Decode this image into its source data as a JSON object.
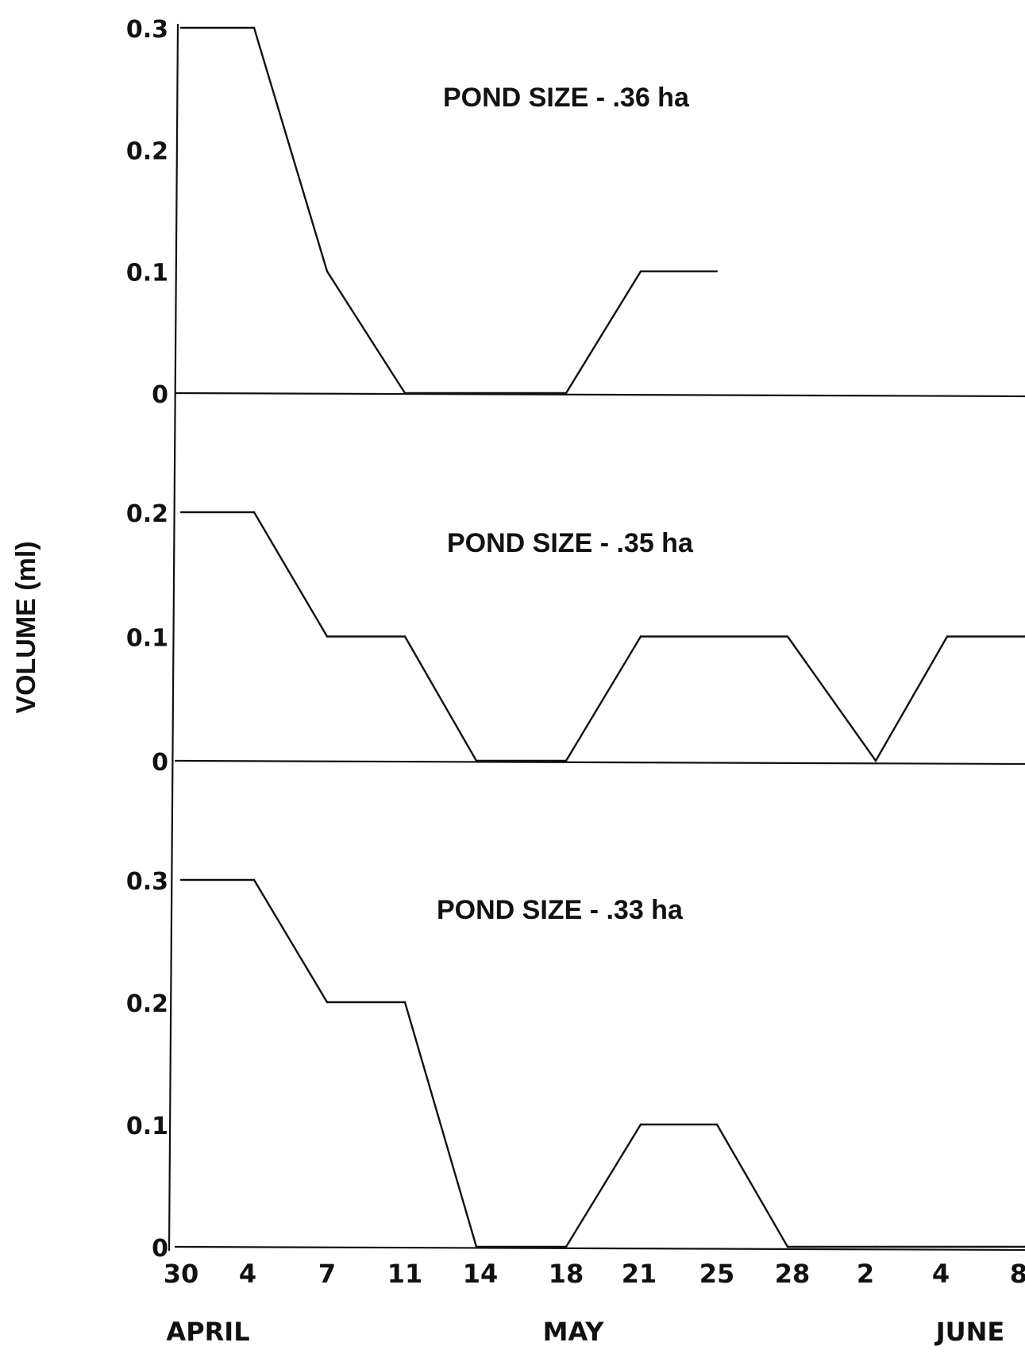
{
  "chart_data": {
    "type": "line",
    "ylabel": "VOLUME (ml)",
    "x_ticks": [
      "30",
      "4",
      "7",
      "11",
      "14",
      "18",
      "21",
      "25",
      "28",
      "2",
      "4",
      "8"
    ],
    "months": [
      "APRIL",
      "MAY",
      "JUNE"
    ],
    "grid": false,
    "panels": [
      {
        "title": "POND SIZE - .36 ha",
        "yticks": [
          "0.3",
          "0.2",
          "0.1",
          "0"
        ],
        "ylim": [
          0,
          0.3
        ],
        "series": [
          {
            "x": [
              "Apr 30",
              "May 4",
              "May 7",
              "May 11",
              "May 14",
              "May 18",
              "May 21",
              "May 25"
            ],
            "values": [
              0.3,
              0.3,
              0.1,
              0,
              0,
              0,
              0.1,
              0.1
            ]
          }
        ]
      },
      {
        "title": "POND SIZE - .35 ha",
        "yticks": [
          "0.2",
          "0.1",
          "0"
        ],
        "ylim": [
          0,
          0.2
        ],
        "series": [
          {
            "x": [
              "Apr 30",
              "May 4",
              "May 7",
              "May 11",
              "May 14",
              "May 18",
              "May 21",
              "May 25",
              "May 28",
              "Jun 2",
              "Jun 4",
              "Jun 8"
            ],
            "values": [
              0.2,
              0.2,
              0.1,
              0.1,
              0,
              0,
              0.1,
              0.1,
              0.1,
              0,
              0.1,
              0.1
            ]
          }
        ]
      },
      {
        "title": "POND SIZE - .33 ha",
        "yticks": [
          "0.3",
          "0.2",
          "0.1",
          "0"
        ],
        "ylim": [
          0,
          0.3
        ],
        "series": [
          {
            "x": [
              "Apr 30",
              "May 4",
              "May 7",
              "May 11",
              "May 14",
              "May 18",
              "May 21",
              "May 25",
              "May 28",
              "Jun 2",
              "Jun 4",
              "Jun 8"
            ],
            "values": [
              0.3,
              0.3,
              0.2,
              0.2,
              0,
              0,
              0.1,
              0.1,
              0,
              0,
              0,
              0
            ]
          }
        ]
      }
    ]
  }
}
